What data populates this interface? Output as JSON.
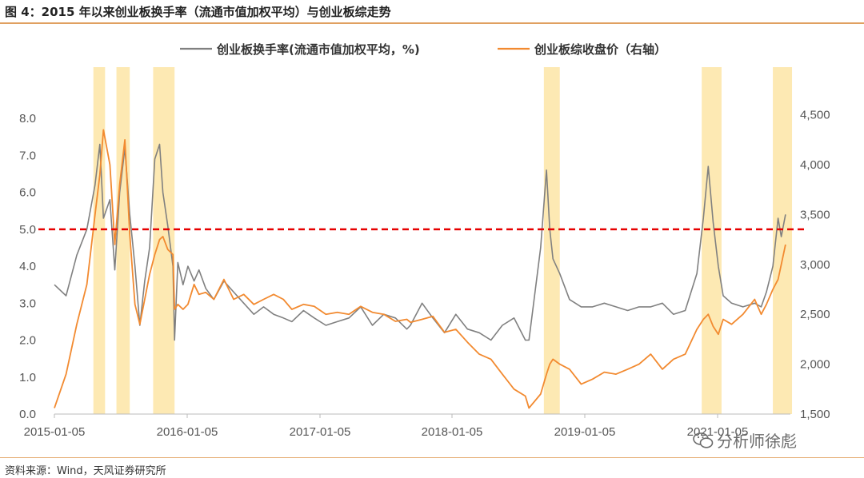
{
  "figure": {
    "title": "图 4：2015 年以来创业板换手率（流通市值加权平均）与创业板综走势",
    "source": "资料来源：Wind，天风证券研究所",
    "watermark": "分析师徐彪",
    "watermark_icon": "wechat-icon"
  },
  "chart_data": {
    "type": "line",
    "x_tick_labels": [
      "2015-01-05",
      "2016-01-05",
      "2017-01-05",
      "2018-01-05",
      "2019-01-05",
      "2021-01-05"
    ],
    "y_left": {
      "range": [
        0,
        8.5
      ],
      "ticks": [
        "0.0",
        "1.0",
        "2.0",
        "3.0",
        "4.0",
        "5.0",
        "6.0",
        "7.0",
        "8.0"
      ]
    },
    "y_right": {
      "range": [
        1500,
        4650
      ],
      "ticks": [
        "1,500",
        "2,000",
        "2,500",
        "3,000",
        "3,500",
        "4,000",
        "4,500"
      ]
    },
    "reference_line": {
      "axis": "left",
      "value": 5.0,
      "color": "#e60000",
      "style": "dashed"
    },
    "highlight_periods": [
      [
        "2015-05-05",
        "2015-06-10"
      ],
      [
        "2015-07-15",
        "2015-08-25"
      ],
      [
        "2015-11-05",
        "2016-01-10"
      ],
      [
        "2019-02-20",
        "2019-04-10"
      ],
      [
        "2020-06-20",
        "2020-08-20"
      ],
      [
        "2021-01-25",
        "2021-03-25"
      ]
    ],
    "highlight_color": "#fde9b3",
    "grid": false,
    "legend_position": "top",
    "series": [
      {
        "name": "创业板换手率(流通市值加权平均，%)",
        "axis": "left",
        "color": "#808080",
        "x": [
          "2015-01-05",
          "2015-02-10",
          "2015-03-15",
          "2015-04-15",
          "2015-05-10",
          "2015-05-25",
          "2015-06-05",
          "2015-06-25",
          "2015-07-10",
          "2015-07-25",
          "2015-08-10",
          "2015-08-25",
          "2015-09-10",
          "2015-09-25",
          "2015-10-10",
          "2015-10-25",
          "2015-11-10",
          "2015-11-25",
          "2015-12-05",
          "2015-12-20",
          "2016-01-05",
          "2016-01-10",
          "2016-01-20",
          "2016-02-05",
          "2016-02-20",
          "2016-03-10",
          "2016-03-25",
          "2016-04-15",
          "2016-05-10",
          "2016-06-10",
          "2016-07-10",
          "2016-08-10",
          "2016-09-10",
          "2016-10-10",
          "2016-11-10",
          "2016-12-10",
          "2017-01-05",
          "2017-02-10",
          "2017-03-15",
          "2017-04-20",
          "2017-05-25",
          "2017-06-30",
          "2017-08-05",
          "2017-09-10",
          "2017-10-15",
          "2017-11-20",
          "2017-12-25",
          "2018-01-05",
          "2018-02-10",
          "2018-03-15",
          "2018-04-20",
          "2018-05-25",
          "2018-06-30",
          "2018-08-05",
          "2018-09-10",
          "2018-10-15",
          "2018-11-20",
          "2018-12-25",
          "2019-01-05",
          "2019-02-10",
          "2019-02-28",
          "2019-03-10",
          "2019-03-20",
          "2019-04-10",
          "2019-05-10",
          "2019-06-15",
          "2019-07-20",
          "2019-08-25",
          "2019-09-30",
          "2019-11-05",
          "2019-12-10",
          "2020-01-15",
          "2020-02-20",
          "2020-03-25",
          "2020-04-30",
          "2020-06-05",
          "2020-06-25",
          "2020-07-10",
          "2020-07-25",
          "2020-08-10",
          "2020-08-25",
          "2020-09-20",
          "2020-10-25",
          "2020-11-30",
          "2020-12-20",
          "2021-01-05",
          "2021-01-25",
          "2021-02-10",
          "2021-02-20",
          "2021-03-05"
        ],
        "values": [
          3.5,
          3.2,
          4.3,
          5.0,
          6.2,
          7.3,
          5.3,
          5.8,
          3.9,
          6.0,
          7.2,
          5.4,
          4.0,
          2.4,
          3.6,
          4.5,
          6.9,
          7.3,
          6.0,
          5.1,
          4.0,
          2.0,
          4.1,
          3.5,
          4.0,
          3.6,
          3.9,
          3.4,
          3.1,
          3.6,
          3.3,
          3.0,
          2.7,
          2.9,
          2.7,
          2.6,
          2.5,
          2.8,
          2.6,
          2.4,
          2.5,
          2.6,
          2.9,
          2.4,
          2.7,
          2.6,
          2.3,
          2.4,
          3.0,
          2.6,
          2.2,
          2.7,
          2.3,
          2.2,
          2.0,
          2.4,
          2.6,
          2.0,
          2.0,
          4.5,
          6.6,
          5.0,
          4.2,
          3.8,
          3.1,
          2.9,
          2.9,
          3.0,
          2.9,
          2.8,
          2.9,
          2.9,
          3.0,
          2.7,
          2.8,
          3.8,
          5.3,
          6.7,
          5.2,
          4.0,
          3.2,
          3.0,
          2.9,
          3.0,
          2.9,
          3.3,
          4.0,
          5.3,
          4.8,
          5.4
        ]
      },
      {
        "name": "创业板综收盘价（右轴）",
        "axis": "right",
        "color": "#f28a30",
        "x": [
          "2015-01-05",
          "2015-02-10",
          "2015-03-15",
          "2015-04-15",
          "2015-05-10",
          "2015-05-25",
          "2015-06-05",
          "2015-06-25",
          "2015-07-10",
          "2015-07-25",
          "2015-08-10",
          "2015-08-25",
          "2015-09-10",
          "2015-09-25",
          "2015-10-10",
          "2015-10-25",
          "2015-11-10",
          "2015-11-25",
          "2015-12-05",
          "2015-12-20",
          "2016-01-05",
          "2016-01-10",
          "2016-01-20",
          "2016-02-05",
          "2016-02-20",
          "2016-03-10",
          "2016-03-25",
          "2016-04-15",
          "2016-05-10",
          "2016-06-10",
          "2016-07-10",
          "2016-08-10",
          "2016-09-10",
          "2016-10-10",
          "2016-11-10",
          "2016-12-10",
          "2017-01-05",
          "2017-02-10",
          "2017-03-15",
          "2017-04-20",
          "2017-05-25",
          "2017-06-30",
          "2017-08-05",
          "2017-09-10",
          "2017-10-15",
          "2017-11-20",
          "2017-12-25",
          "2018-01-05",
          "2018-02-10",
          "2018-03-15",
          "2018-04-20",
          "2018-05-25",
          "2018-06-30",
          "2018-08-05",
          "2018-09-10",
          "2018-10-15",
          "2018-11-20",
          "2018-12-25",
          "2019-01-05",
          "2019-02-10",
          "2019-02-28",
          "2019-03-10",
          "2019-03-20",
          "2019-04-10",
          "2019-05-10",
          "2019-06-15",
          "2019-07-20",
          "2019-08-25",
          "2019-09-30",
          "2019-11-05",
          "2019-12-10",
          "2020-01-15",
          "2020-02-20",
          "2020-03-25",
          "2020-04-30",
          "2020-06-05",
          "2020-06-25",
          "2020-07-10",
          "2020-07-25",
          "2020-08-10",
          "2020-08-25",
          "2020-09-20",
          "2020-10-25",
          "2020-11-30",
          "2020-12-20",
          "2021-01-05",
          "2021-01-25",
          "2021-02-10",
          "2021-02-20",
          "2021-03-05"
        ],
        "values": [
          1560,
          1900,
          2400,
          2800,
          3500,
          3900,
          4350,
          4000,
          3200,
          3800,
          4250,
          3300,
          2600,
          2400,
          2650,
          2900,
          3100,
          3250,
          3280,
          3150,
          3100,
          2550,
          2600,
          2550,
          2600,
          2800,
          2700,
          2720,
          2650,
          2850,
          2650,
          2700,
          2600,
          2650,
          2700,
          2650,
          2550,
          2600,
          2580,
          2500,
          2520,
          2500,
          2580,
          2520,
          2500,
          2430,
          2450,
          2420,
          2450,
          2480,
          2320,
          2350,
          2220,
          2100,
          2050,
          1900,
          1750,
          1680,
          1560,
          1700,
          1900,
          2000,
          2050,
          2000,
          1950,
          1800,
          1850,
          1920,
          1900,
          1950,
          2000,
          2100,
          1950,
          2050,
          2100,
          2350,
          2450,
          2500,
          2380,
          2300,
          2450,
          2400,
          2500,
          2650,
          2500,
          2600,
          2750,
          2850,
          3000,
          3200
        ]
      }
    ]
  }
}
